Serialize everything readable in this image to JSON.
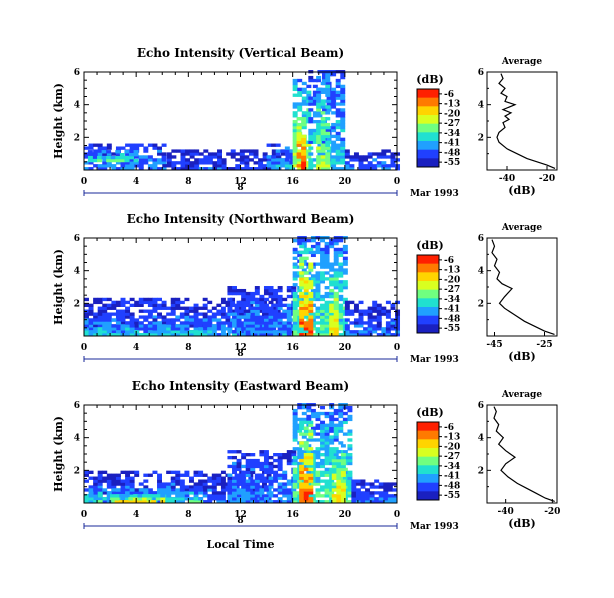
{
  "chart_data": [
    {
      "type": "heatmap",
      "title": "Echo Intensity (Vertical Beam)",
      "ylabel": "Height (km)",
      "x_ticks": [
        "0",
        "4",
        "8",
        "12",
        "16",
        "20",
        "0"
      ],
      "y_ticks": [
        "2",
        "4",
        "6"
      ],
      "xlim": [
        0,
        24
      ],
      "ylim": [
        0,
        6
      ],
      "day_label": "8",
      "date_label": "Mar 1993",
      "colorbar": {
        "unit": "(dB)",
        "levels": [
          "-6",
          "-13",
          "-20",
          "-27",
          "-34",
          "-41",
          "-48",
          "-55"
        ],
        "colors": [
          "#ff2000",
          "#ff7a00",
          "#ffd400",
          "#d9ff20",
          "#70ff80",
          "#20e0d0",
          "#20a0ff",
          "#2040ff",
          "#1a20c0"
        ]
      },
      "average_profile": {
        "title": "Average",
        "xlabel": "(dB)",
        "x_ticks": [
          "-40",
          "-20"
        ],
        "y_ticks": [
          "2",
          "4",
          "6"
        ],
        "xlim": [
          -50,
          -15
        ],
        "points": [
          [
            -16,
            0.1
          ],
          [
            -20,
            0.3
          ],
          [
            -25,
            0.5
          ],
          [
            -30,
            0.7
          ],
          [
            -35,
            1.0
          ],
          [
            -40,
            1.3
          ],
          [
            -44,
            1.7
          ],
          [
            -45,
            2.0
          ],
          [
            -44,
            2.3
          ],
          [
            -41,
            2.6
          ],
          [
            -42,
            2.9
          ],
          [
            -39,
            3.1
          ],
          [
            -41,
            3.3
          ],
          [
            -38,
            3.5
          ],
          [
            -42,
            3.7
          ],
          [
            -36,
            4.0
          ],
          [
            -41,
            4.2
          ],
          [
            -40,
            4.5
          ],
          [
            -43,
            4.7
          ],
          [
            -41,
            5.0
          ],
          [
            -44,
            5.3
          ],
          [
            -42,
            5.6
          ],
          [
            -43,
            5.9
          ]
        ]
      },
      "echo_regions": [
        {
          "x0": 0,
          "x1": 6,
          "y0": 0,
          "y1": 1.6,
          "level": 0.25
        },
        {
          "x0": 0.3,
          "x1": 4,
          "y0": 0.5,
          "y1": 1.1,
          "level": 0.45
        },
        {
          "x0": 6,
          "x1": 16,
          "y0": 0,
          "y1": 1.1,
          "level": 0.15
        },
        {
          "x0": 14,
          "x1": 16,
          "y0": 0,
          "y1": 1.5,
          "level": 0.3
        },
        {
          "x0": 16,
          "x1": 17.2,
          "y0": 0,
          "y1": 5.5,
          "level": 0.6
        },
        {
          "x0": 16.3,
          "x1": 16.8,
          "y0": 0,
          "y1": 3.2,
          "level": 0.95
        },
        {
          "x0": 17.2,
          "x1": 20,
          "y0": 0,
          "y1": 6,
          "level": 0.35
        },
        {
          "x0": 17.8,
          "x1": 18.6,
          "y0": 0,
          "y1": 6,
          "level": 0.55
        },
        {
          "x0": 20,
          "x1": 24,
          "y0": 0,
          "y1": 1.2,
          "level": 0.2
        }
      ]
    },
    {
      "type": "heatmap",
      "title": "Echo Intensity (Northward Beam)",
      "ylabel": "Height (km)",
      "x_ticks": [
        "0",
        "4",
        "8",
        "12",
        "16",
        "20",
        "0"
      ],
      "y_ticks": [
        "2",
        "4",
        "6"
      ],
      "xlim": [
        0,
        24
      ],
      "ylim": [
        0,
        6
      ],
      "day_label": "8",
      "date_label": "Mar 1993",
      "colorbar": {
        "unit": "(dB)",
        "levels": [
          "-6",
          "-13",
          "-20",
          "-27",
          "-34",
          "-41",
          "-48",
          "-55"
        ],
        "colors": [
          "#ff2000",
          "#ff7a00",
          "#ffd400",
          "#d9ff20",
          "#70ff80",
          "#20e0d0",
          "#20a0ff",
          "#2040ff",
          "#1a20c0"
        ]
      },
      "average_profile": {
        "title": "Average",
        "xlabel": "(dB)",
        "x_ticks": [
          "-45",
          "-25"
        ],
        "y_ticks": [
          "2",
          "4",
          "6"
        ],
        "xlim": [
          -48,
          -20
        ],
        "points": [
          [
            -21,
            0.1
          ],
          [
            -25,
            0.3
          ],
          [
            -29,
            0.6
          ],
          [
            -33,
            0.9
          ],
          [
            -37,
            1.3
          ],
          [
            -41,
            1.7
          ],
          [
            -43,
            2.0
          ],
          [
            -41,
            2.4
          ],
          [
            -38,
            2.9
          ],
          [
            -42,
            3.2
          ],
          [
            -44,
            3.5
          ],
          [
            -43,
            3.9
          ],
          [
            -45,
            4.3
          ],
          [
            -44,
            4.7
          ],
          [
            -46,
            5.1
          ],
          [
            -45,
            5.5
          ],
          [
            -46,
            5.9
          ]
        ]
      },
      "echo_regions": [
        {
          "x0": 0,
          "x1": 15,
          "y0": 0,
          "y1": 2.2,
          "level": 0.2
        },
        {
          "x0": 0,
          "x1": 10,
          "y0": 0,
          "y1": 1.0,
          "level": 0.35
        },
        {
          "x0": 11,
          "x1": 16,
          "y0": 0,
          "y1": 3.0,
          "level": 0.25
        },
        {
          "x0": 16,
          "x1": 20,
          "y0": 0,
          "y1": 6,
          "level": 0.45
        },
        {
          "x0": 16.5,
          "x1": 17.4,
          "y0": 0,
          "y1": 5.5,
          "level": 0.9
        },
        {
          "x0": 18.8,
          "x1": 19.5,
          "y0": 0,
          "y1": 4.5,
          "level": 0.7
        },
        {
          "x0": 20,
          "x1": 24,
          "y0": 0,
          "y1": 2.0,
          "level": 0.2
        }
      ]
    },
    {
      "type": "heatmap",
      "title": "Echo Intensity (Eastward Beam)",
      "ylabel": "Height (km)",
      "xlabel": "Local Time",
      "x_ticks": [
        "0",
        "4",
        "8",
        "12",
        "16",
        "20",
        "0"
      ],
      "y_ticks": [
        "2",
        "4",
        "6"
      ],
      "xlim": [
        0,
        24
      ],
      "ylim": [
        0,
        6
      ],
      "day_label": "8",
      "date_label": "Mar 1993",
      "colorbar": {
        "unit": "(dB)",
        "levels": [
          "-6",
          "-13",
          "-20",
          "-27",
          "-34",
          "-41",
          "-48",
          "-55"
        ],
        "colors": [
          "#ff2000",
          "#ff7a00",
          "#ffd400",
          "#d9ff20",
          "#70ff80",
          "#20e0d0",
          "#20a0ff",
          "#2040ff",
          "#1a20c0"
        ]
      },
      "average_profile": {
        "title": "Average",
        "xlabel": "(dB)",
        "x_ticks": [
          "-40",
          "-20"
        ],
        "y_ticks": [
          "2",
          "4",
          "6"
        ],
        "xlim": [
          -48,
          -18
        ],
        "points": [
          [
            -19,
            0.1
          ],
          [
            -23,
            0.3
          ],
          [
            -27,
            0.6
          ],
          [
            -31,
            0.9
          ],
          [
            -35,
            1.2
          ],
          [
            -39,
            1.6
          ],
          [
            -42,
            2.0
          ],
          [
            -40,
            2.4
          ],
          [
            -36,
            2.8
          ],
          [
            -40,
            3.2
          ],
          [
            -43,
            3.6
          ],
          [
            -41,
            4.0
          ],
          [
            -44,
            4.4
          ],
          [
            -43,
            4.8
          ],
          [
            -45,
            5.2
          ],
          [
            -44,
            5.6
          ],
          [
            -45,
            5.9
          ]
        ]
      },
      "echo_regions": [
        {
          "x0": 0,
          "x1": 14,
          "y0": 0,
          "y1": 1.8,
          "level": 0.2
        },
        {
          "x0": 0,
          "x1": 9,
          "y0": 0,
          "y1": 0.8,
          "level": 0.4
        },
        {
          "x0": 2,
          "x1": 6,
          "y0": 0,
          "y1": 0.4,
          "level": 0.7
        },
        {
          "x0": 11,
          "x1": 16,
          "y0": 0,
          "y1": 3.2,
          "level": 0.25
        },
        {
          "x0": 16,
          "x1": 20.5,
          "y0": 0,
          "y1": 6,
          "level": 0.45
        },
        {
          "x0": 16.5,
          "x1": 17.4,
          "y0": 0,
          "y1": 5.0,
          "level": 0.9
        },
        {
          "x0": 19,
          "x1": 19.8,
          "y0": 0,
          "y1": 3.5,
          "level": 0.7
        },
        {
          "x0": 20.5,
          "x1": 24,
          "y0": 0,
          "y1": 1.4,
          "level": 0.2
        }
      ]
    }
  ]
}
